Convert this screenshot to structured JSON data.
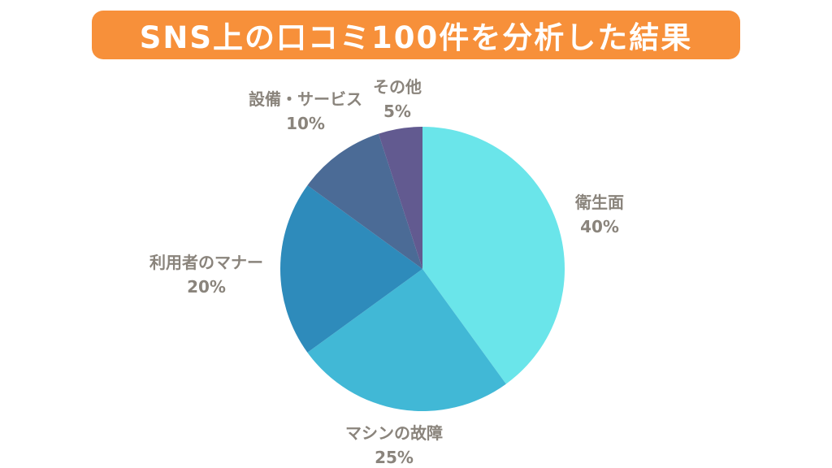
{
  "title": "SNS上の口コミ100件を分析した結果",
  "colors": {
    "title_background": "#f7903a",
    "label_text": "#8a847c"
  },
  "chart_data": {
    "type": "pie",
    "title": "SNS上の口コミ100件を分析した結果",
    "slices": [
      {
        "label": "衛生面",
        "value": 40,
        "value_label": "40%",
        "color": "#6ae5ea"
      },
      {
        "label": "マシンの故障",
        "value": 25,
        "value_label": "25%",
        "color": "#41b8d6"
      },
      {
        "label": "利用者のマナー",
        "value": 20,
        "value_label": "20%",
        "color": "#2e8bbb"
      },
      {
        "label": "設備・サービス",
        "value": 10,
        "value_label": "10%",
        "color": "#4b6b96"
      },
      {
        "label": "その他",
        "value": 5,
        "value_label": "5%",
        "color": "#625a90"
      }
    ]
  }
}
